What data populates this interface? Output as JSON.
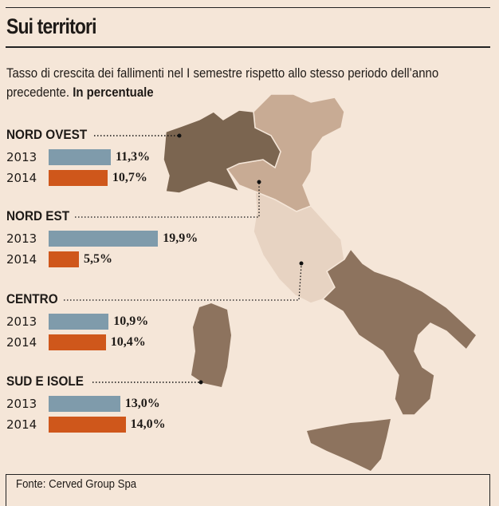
{
  "header": {
    "title": "Sui territori",
    "subtitle": "Tasso di crescita dei fallimenti nel I semestre rispetto allo stesso periodo dell’anno precedente.",
    "subtitle_unit": "In percentuale"
  },
  "chart_data": {
    "type": "bar",
    "orientation": "horizontal",
    "unit": "%",
    "groups": [
      {
        "name": "NORD OVEST",
        "rows": [
          {
            "year": "2013",
            "value": 11.3,
            "label": "11,3%"
          },
          {
            "year": "2014",
            "value": 10.7,
            "label": "10,7%"
          }
        ]
      },
      {
        "name": "NORD EST",
        "rows": [
          {
            "year": "2013",
            "value": 19.9,
            "label": "19,9%"
          },
          {
            "year": "2014",
            "value": 5.5,
            "label": "5,5%"
          }
        ]
      },
      {
        "name": "CENTRO",
        "rows": [
          {
            "year": "2013",
            "value": 10.9,
            "label": "10,9%"
          },
          {
            "year": "2014",
            "value": 10.4,
            "label": "10,4%"
          }
        ]
      },
      {
        "name": "SUD E ISOLE",
        "rows": [
          {
            "year": "2013",
            "value": 13.0,
            "label": "13,0%"
          },
          {
            "year": "2014",
            "value": 14.0,
            "label": "14,0%"
          }
        ]
      }
    ],
    "colors": {
      "2013": "#7f9bab",
      "2014": "#cf571b"
    },
    "map_colors": {
      "nord_ovest": "#7b6550",
      "nord_est": "#c8ab94",
      "centro": "#e7d3c2",
      "sud_e_isole": "#8d735e"
    }
  },
  "footer": {
    "source": "Fonte: Cerved Group Spa"
  }
}
